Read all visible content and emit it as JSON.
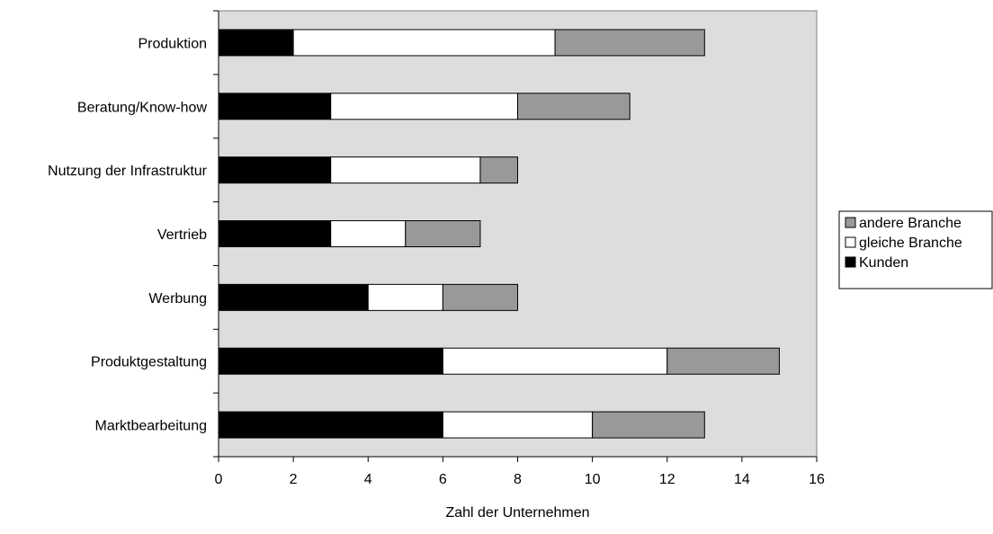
{
  "chart_data": {
    "type": "bar",
    "orientation": "horizontal",
    "stacked": true,
    "categories": [
      "Produktion",
      "Beratung/Know-how",
      "Nutzung der Infrastruktur",
      "Vertrieb",
      "Werbung",
      "Produktgestaltung",
      "Marktbearbeitung"
    ],
    "series": [
      {
        "name": "Kunden",
        "color": "#000000",
        "values": [
          2,
          3,
          3,
          3,
          4,
          6,
          6
        ]
      },
      {
        "name": "gleiche Branche",
        "color": "#ffffff",
        "values": [
          7,
          5,
          4,
          2,
          2,
          6,
          4
        ]
      },
      {
        "name": "andere Branche",
        "color": "#999999",
        "values": [
          4,
          3,
          1,
          2,
          2,
          3,
          3
        ]
      }
    ],
    "title": "",
    "xlabel": "Zahl der Unternehmen",
    "ylabel": "",
    "xlim": [
      0,
      16
    ],
    "xticks": [
      "0",
      "2",
      "4",
      "6",
      "8",
      "10",
      "12",
      "14",
      "16"
    ],
    "grid": false,
    "plot_background": "#dddddd",
    "legend_position": "right",
    "legend_order": [
      "andere Branche",
      "gleiche Branche",
      "Kunden"
    ]
  }
}
